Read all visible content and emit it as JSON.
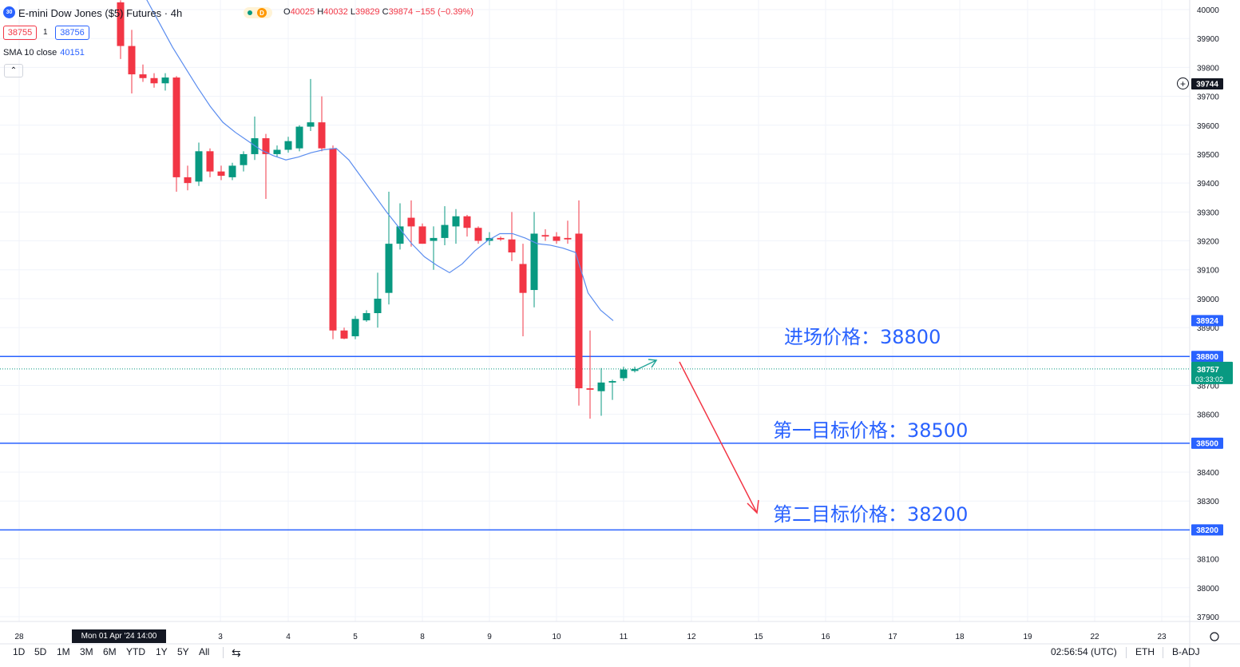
{
  "header": {
    "symbol_badge": "30",
    "title": "E-mini Dow Jones ($5) Futures · 4h",
    "ohlc": {
      "o_label": "O",
      "o": "40025",
      "h_label": "H",
      "h": "40032",
      "l_label": "L",
      "l": "39829",
      "c_label": "C",
      "c": "39874",
      "change": "−155 (−0.39%)"
    },
    "status_d": "D",
    "sell_price": "38755",
    "spread": "1",
    "buy_price": "38756",
    "indicator": {
      "name": "SMA 10 close",
      "value": "40151"
    },
    "collapse_glyph": "⌃"
  },
  "price_axis": {
    "ticks": [
      40000,
      39900,
      39800,
      39700,
      39600,
      39500,
      39400,
      39300,
      39200,
      39100,
      39000,
      38900,
      38800,
      38700,
      38600,
      38500,
      38400,
      38300,
      38200,
      38100,
      38000,
      37900
    ],
    "ymin": 37900,
    "ymax": 40000,
    "labels": {
      "high_marker": "39744",
      "sma_last": "38924",
      "entry_line": "38800",
      "current_price": "38757",
      "countdown": "03:33:02",
      "target1_line": "38500",
      "target2_line": "38200"
    }
  },
  "time_axis": {
    "labels": [
      "28",
      "3",
      "4",
      "5",
      "8",
      "9",
      "10",
      "11",
      "12",
      "15",
      "16",
      "17",
      "18",
      "19",
      "22",
      "23"
    ],
    "crosshair_label": "Mon 01 Apr '24    14:00"
  },
  "annotations": {
    "entry": "进场价格：38800",
    "target1": "第一目标价格：38500",
    "target2": "第二目标价格：38200"
  },
  "colors": {
    "up": "#089981",
    "down": "#f23645",
    "line": "#2962ff",
    "sma": "#5b8def"
  },
  "chart_data": {
    "type": "candlestick",
    "title": "E-mini Dow Jones ($5) Futures · 4h",
    "ylim": [
      37900,
      40000
    ],
    "candles": [
      {
        "o": 40025,
        "h": 40032,
        "l": 39829,
        "c": 39874
      },
      {
        "o": 39874,
        "h": 39930,
        "l": 39710,
        "c": 39776
      },
      {
        "o": 39776,
        "h": 39810,
        "l": 39750,
        "c": 39763
      },
      {
        "o": 39763,
        "h": 39780,
        "l": 39730,
        "c": 39745
      },
      {
        "o": 39745,
        "h": 39780,
        "l": 39720,
        "c": 39765
      },
      {
        "o": 39765,
        "h": 39770,
        "l": 39370,
        "c": 39420
      },
      {
        "o": 39420,
        "h": 39460,
        "l": 39375,
        "c": 39400
      },
      {
        "o": 39405,
        "h": 39540,
        "l": 39390,
        "c": 39510
      },
      {
        "o": 39510,
        "h": 39520,
        "l": 39420,
        "c": 39440
      },
      {
        "o": 39440,
        "h": 39460,
        "l": 39410,
        "c": 39425
      },
      {
        "o": 39420,
        "h": 39470,
        "l": 39410,
        "c": 39460
      },
      {
        "o": 39462,
        "h": 39510,
        "l": 39440,
        "c": 39500
      },
      {
        "o": 39500,
        "h": 39630,
        "l": 39480,
        "c": 39555
      },
      {
        "o": 39555,
        "h": 39570,
        "l": 39345,
        "c": 39500
      },
      {
        "o": 39500,
        "h": 39530,
        "l": 39490,
        "c": 39515
      },
      {
        "o": 39515,
        "h": 39560,
        "l": 39505,
        "c": 39545
      },
      {
        "o": 39520,
        "h": 39600,
        "l": 39510,
        "c": 39595
      },
      {
        "o": 39595,
        "h": 39760,
        "l": 39580,
        "c": 39610
      },
      {
        "o": 39610,
        "h": 39700,
        "l": 39510,
        "c": 39520
      },
      {
        "o": 39520,
        "h": 39530,
        "l": 38860,
        "c": 38890
      },
      {
        "o": 38890,
        "h": 38900,
        "l": 38860,
        "c": 38862
      },
      {
        "o": 38870,
        "h": 38940,
        "l": 38860,
        "c": 38930
      },
      {
        "o": 38925,
        "h": 38960,
        "l": 38920,
        "c": 38950
      },
      {
        "o": 38950,
        "h": 39090,
        "l": 38900,
        "c": 39000
      },
      {
        "o": 39020,
        "h": 39370,
        "l": 38980,
        "c": 39190
      },
      {
        "o": 39190,
        "h": 39330,
        "l": 39170,
        "c": 39250
      },
      {
        "o": 39280,
        "h": 39340,
        "l": 39180,
        "c": 39250
      },
      {
        "o": 39250,
        "h": 39260,
        "l": 39190,
        "c": 39190
      },
      {
        "o": 39200,
        "h": 39250,
        "l": 39100,
        "c": 39210
      },
      {
        "o": 39210,
        "h": 39320,
        "l": 39185,
        "c": 39255
      },
      {
        "o": 39250,
        "h": 39310,
        "l": 39190,
        "c": 39285
      },
      {
        "o": 39285,
        "h": 39290,
        "l": 39215,
        "c": 39245
      },
      {
        "o": 39245,
        "h": 39250,
        "l": 39190,
        "c": 39200
      },
      {
        "o": 39200,
        "h": 39230,
        "l": 39185,
        "c": 39210
      },
      {
        "o": 39210,
        "h": 39215,
        "l": 39200,
        "c": 39205
      },
      {
        "o": 39205,
        "h": 39300,
        "l": 39130,
        "c": 39160
      },
      {
        "o": 39120,
        "h": 39190,
        "l": 38870,
        "c": 39020
      },
      {
        "o": 39030,
        "h": 39300,
        "l": 38970,
        "c": 39225
      },
      {
        "o": 39220,
        "h": 39240,
        "l": 39200,
        "c": 39215
      },
      {
        "o": 39215,
        "h": 39230,
        "l": 39190,
        "c": 39200
      },
      {
        "o": 39210,
        "h": 39270,
        "l": 39190,
        "c": 39205
      },
      {
        "o": 39225,
        "h": 39340,
        "l": 38630,
        "c": 38690
      },
      {
        "o": 38690,
        "h": 38890,
        "l": 38585,
        "c": 38685
      },
      {
        "o": 38680,
        "h": 38760,
        "l": 38595,
        "c": 38710
      },
      {
        "o": 38710,
        "h": 38720,
        "l": 38650,
        "c": 38715
      },
      {
        "o": 38725,
        "h": 38765,
        "l": 38715,
        "c": 38755
      },
      {
        "o": 38750,
        "h": 38765,
        "l": 38745,
        "c": 38757
      }
    ],
    "sma10": [
      40200,
      40110,
      40030,
      39950,
      39870,
      39800,
      39730,
      39665,
      39610,
      39575,
      39545,
      39515,
      39495,
      39480,
      39490,
      39505,
      39515,
      39520,
      39480,
      39420,
      39360,
      39300,
      39245,
      39190,
      39145,
      39115,
      39090,
      39120,
      39165,
      39200,
      39225,
      39225,
      39210,
      39190,
      39185,
      39175,
      39160,
      39020,
      38960,
      38924
    ],
    "horizontal_lines": [
      38800,
      38500,
      38200
    ]
  }
}
